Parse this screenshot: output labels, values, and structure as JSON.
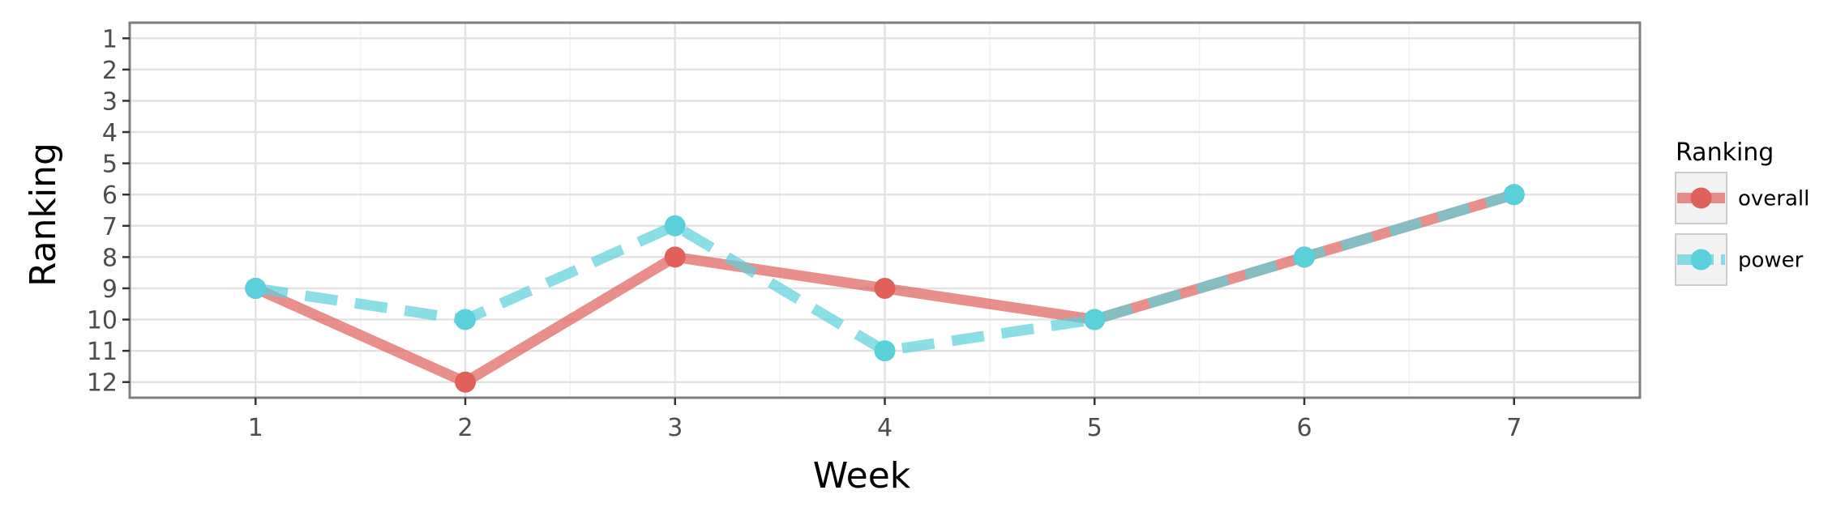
{
  "chart_data": {
    "type": "line",
    "xlabel": "Week",
    "ylabel": "Ranking",
    "x": [
      1,
      2,
      3,
      4,
      5,
      6,
      7
    ],
    "x_ticks": [
      "1",
      "2",
      "3",
      "4",
      "5",
      "6",
      "7"
    ],
    "y_ticks": [
      "1",
      "2",
      "3",
      "4",
      "5",
      "6",
      "7",
      "8",
      "9",
      "10",
      "11",
      "12"
    ],
    "xlim": [
      0.4,
      7.6
    ],
    "ylim": [
      12.5,
      0.5
    ],
    "y_reversed": true,
    "grid": true,
    "legend": {
      "title": "Ranking",
      "position": "right"
    },
    "series": [
      {
        "name": "overall",
        "color": "#e0605a",
        "line_style": "solid",
        "values": [
          9,
          12,
          8,
          9,
          10,
          8,
          6
        ]
      },
      {
        "name": "power",
        "color": "#5ad0da",
        "line_style": "dashed",
        "values": [
          9,
          10,
          7,
          11,
          10,
          8,
          6
        ]
      }
    ]
  }
}
